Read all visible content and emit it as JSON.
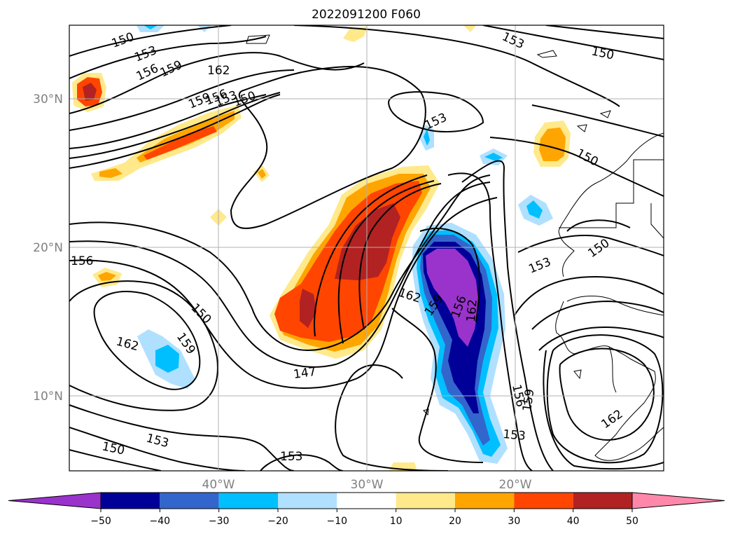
{
  "title": "2022091200 F060",
  "lat_labels": [
    "30°N",
    "20°N",
    "10°N"
  ],
  "lon_labels": [
    "40°W",
    "30°W",
    "20°W"
  ],
  "contour_labels": [
    "150",
    "153",
    "156",
    "159",
    "162",
    "159",
    "156",
    "153",
    "150",
    "153",
    "150",
    "153",
    "150",
    "162",
    "156",
    "150",
    "153",
    "162",
    "159",
    "156",
    "162",
    "159",
    "150",
    "147",
    "153",
    "150",
    "153",
    "156",
    "159",
    "153",
    "162"
  ],
  "colorbar": {
    "ticks": [
      "−50",
      "−40",
      "−30",
      "−20",
      "−10",
      "10",
      "20",
      "30",
      "40",
      "50"
    ],
    "colors": [
      "#9933cc",
      "#000099",
      "#3366cc",
      "#00bfff",
      "#b0e0ff",
      "#ffffff",
      "#ffe98a",
      "#ffa500",
      "#ff4500",
      "#b22222",
      "#ff88aa"
    ]
  },
  "fill_colors": {
    "purple": "#9933cc",
    "navy": "#000099",
    "blue": "#3366cc",
    "sky": "#00bfff",
    "light_blue": "#b0e0ff",
    "yellow": "#ffe98a",
    "orange": "#ffa500",
    "red_orange": "#ff4500",
    "dark_red": "#b22222"
  }
}
